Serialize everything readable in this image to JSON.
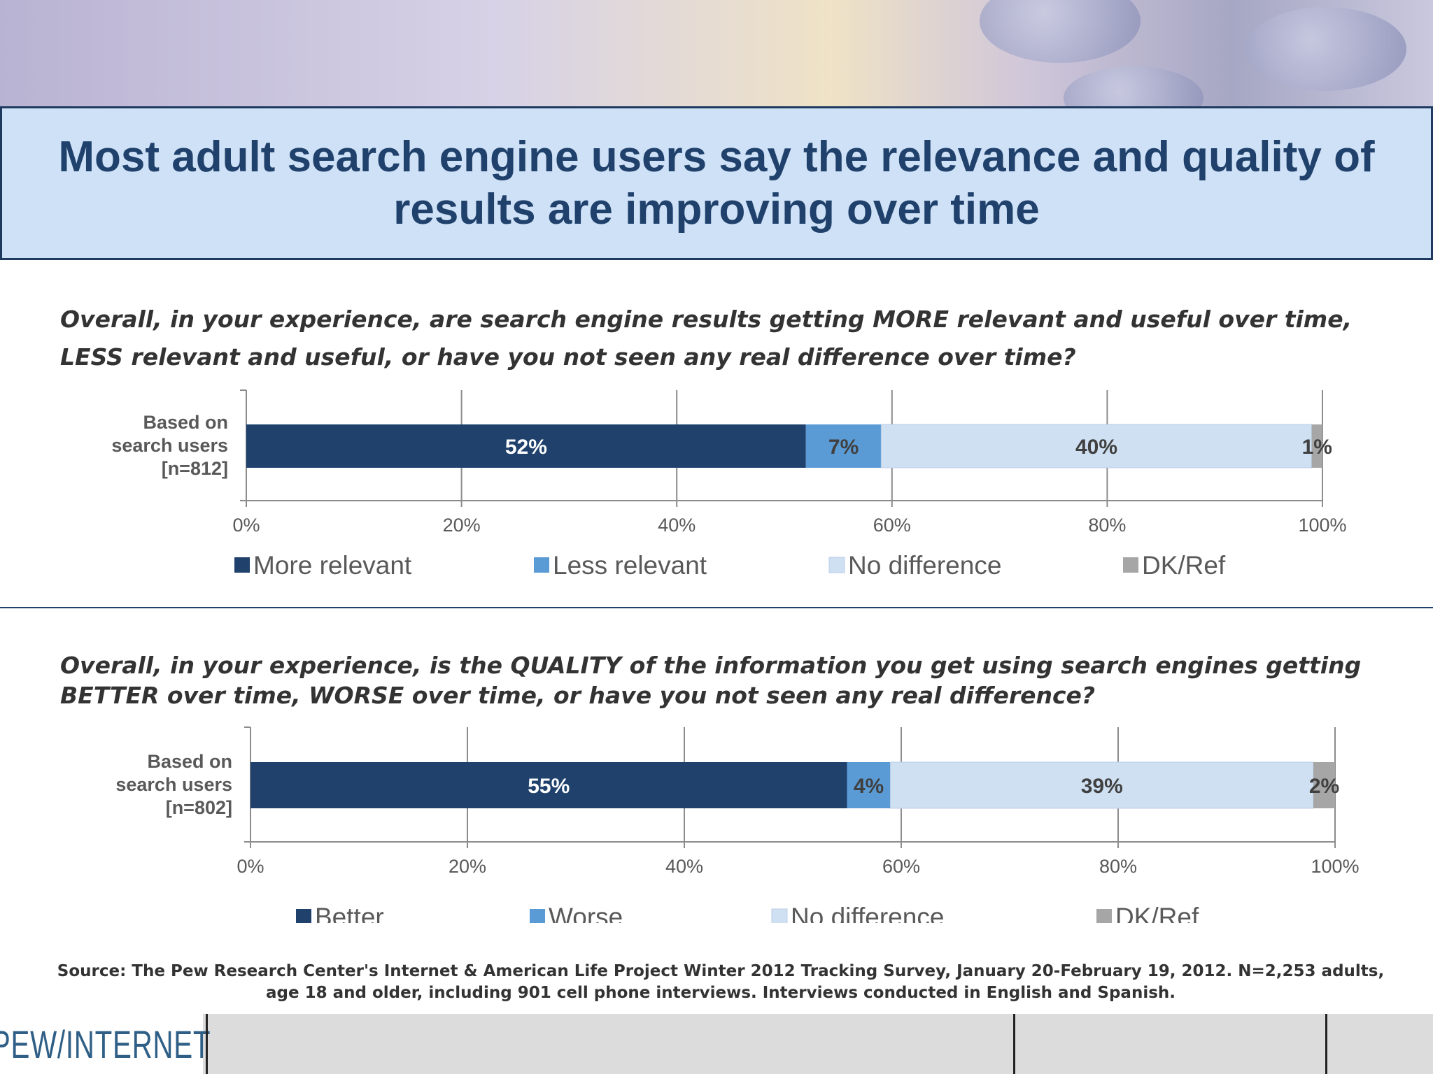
{
  "title": "Most adult search engine users say the relevance and quality of results are improving over time",
  "chart_data": [
    {
      "type": "bar",
      "orientation": "horizontal-stacked",
      "question": "Overall, in your experience, are search engine results getting MORE relevant and useful over time, LESS relevant and useful, or have you not seen any real difference over time?",
      "categories": [
        "Based on search users [n=812]"
      ],
      "category_lines": [
        "Based on",
        "search users",
        "[n=812]"
      ],
      "series": [
        {
          "name": "More relevant",
          "values": [
            52
          ],
          "label": "52%",
          "color": "#1f416c"
        },
        {
          "name": "Less relevant",
          "values": [
            7
          ],
          "label": "7%",
          "color": "#5b9bd5"
        },
        {
          "name": "No difference",
          "values": [
            40
          ],
          "label": "40%",
          "color": "#cfe0f3"
        },
        {
          "name": "DK/Ref",
          "values": [
            1
          ],
          "label": "1%",
          "color": "#a6a6a6"
        }
      ],
      "x_ticks": [
        "0%",
        "20%",
        "40%",
        "60%",
        "80%",
        "100%"
      ],
      "xlim": [
        0,
        100
      ],
      "grid": true,
      "legend": "bottom"
    },
    {
      "type": "bar",
      "orientation": "horizontal-stacked",
      "question": "Overall, in your experience, is the QUALITY of the information you get using search engines getting BETTER over time, WORSE over time, or have you not seen any real difference?",
      "categories": [
        "Based on search users [n=802]"
      ],
      "category_lines": [
        "Based on",
        "search users",
        "[n=802]"
      ],
      "series": [
        {
          "name": "Better",
          "values": [
            55
          ],
          "label": "55%",
          "color": "#1f416c"
        },
        {
          "name": "Worse",
          "values": [
            4
          ],
          "label": "4%",
          "color": "#5b9bd5"
        },
        {
          "name": "No difference",
          "values": [
            39
          ],
          "label": "39%",
          "color": "#cfe0f3"
        },
        {
          "name": "DK/Ref",
          "values": [
            2
          ],
          "label": "2%",
          "color": "#a6a6a6"
        }
      ],
      "x_ticks": [
        "0%",
        "20%",
        "40%",
        "60%",
        "80%",
        "100%"
      ],
      "xlim": [
        0,
        100
      ],
      "grid": true,
      "legend": "bottom"
    }
  ],
  "source": "Source: The Pew Research Center's Internet & American Life Project Winter 2012 Tracking Survey, January 20-February 19, 2012. N=2,253 adults, age 18 and older, including 901 cell phone interviews. Interviews conducted in English and Spanish.",
  "logo": "PEW/INTERNET"
}
